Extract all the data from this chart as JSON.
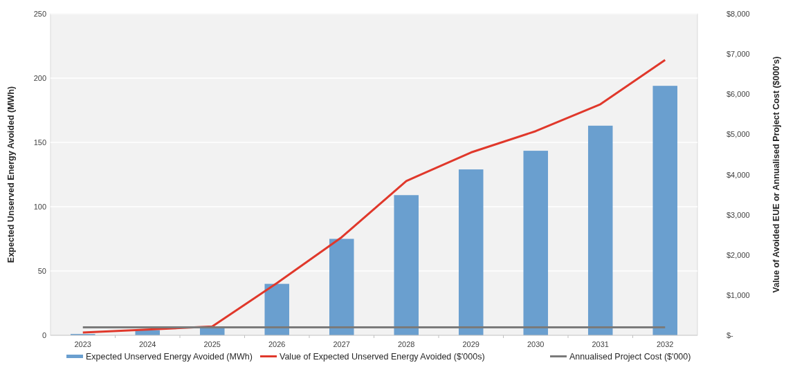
{
  "chart_data": {
    "type": "bar",
    "categories": [
      "2023",
      "2024",
      "2025",
      "2026",
      "2027",
      "2028",
      "2029",
      "2030",
      "2031",
      "2032"
    ],
    "ylabel": "Expected Unserved Energy Avoided (MWh)",
    "y2label": "Value of Avoided EUE or Annualised Project Cost ($000's)",
    "series": [
      {
        "name": "Expected Unserved Energy Avoided (MWh)",
        "color": "#6a9fcf",
        "values": [
          1,
          4,
          6,
          40,
          75,
          109,
          129,
          143.5,
          163,
          194
        ]
      },
      {
        "name": "Value of Expected Unserved Energy Avoided ($'000s)",
        "type": "line",
        "axis": "y2",
        "color": "#e0382b",
        "values": [
          70,
          140,
          220,
          1300,
          2440,
          3840,
          4550,
          5080,
          5750,
          6850
        ]
      },
      {
        "name": "Annualised Project Cost ($'000)",
        "type": "line",
        "axis": "y2",
        "color": "#7a7a7a",
        "values": [
          200,
          200,
          200,
          200,
          200,
          200,
          200,
          200,
          200,
          200
        ]
      }
    ],
    "ylim": [
      0,
      250
    ],
    "yticks": [
      0,
      50,
      100,
      150,
      200,
      250
    ],
    "y2lim": [
      0,
      8000
    ],
    "y2ticks": [
      {
        "value": 0,
        "label": "$-"
      },
      {
        "value": 1000,
        "label": "$1,000"
      },
      {
        "value": 2000,
        "label": "$2,000"
      },
      {
        "value": 3000,
        "label": "$3,000"
      },
      {
        "value": 4000,
        "label": "$4,000"
      },
      {
        "value": 5000,
        "label": "$5,000"
      },
      {
        "value": 6000,
        "label": "$6,000"
      },
      {
        "value": 7000,
        "label": "$7,000"
      },
      {
        "value": 8000,
        "label": "$8,000"
      }
    ],
    "grid": "y",
    "legend": "bottom"
  }
}
